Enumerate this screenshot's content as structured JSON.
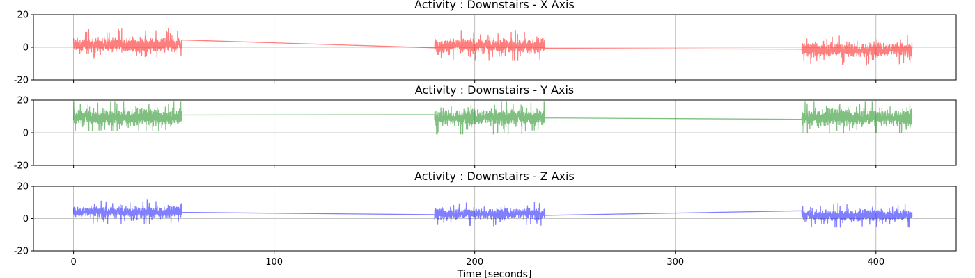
{
  "chart_data": [
    {
      "type": "line",
      "title": "Activity : Downstairs - X Axis",
      "xlim": [
        -20,
        440
      ],
      "ylim": [
        -20,
        20
      ],
      "x_ticks": [
        0,
        100,
        200,
        300,
        400
      ],
      "y_ticks": [
        -20,
        0,
        20
      ],
      "grid": true,
      "color": "#ff0000",
      "alpha": 0.5,
      "segments": [
        {
          "x_start": 0,
          "x_end": 54,
          "center": 1.5,
          "amplitude": 5,
          "peak_high": 12,
          "peak_low": -7
        },
        {
          "x_start": 180,
          "x_end": 235,
          "center": 1,
          "amplitude": 5,
          "peak_high": 12,
          "peak_low": -10
        },
        {
          "x_start": 363,
          "x_end": 418,
          "center": -1.5,
          "amplitude": 5,
          "peak_high": 10,
          "peak_low": -13
        }
      ]
    },
    {
      "type": "line",
      "title": "Activity : Downstairs - Y Axis",
      "xlim": [
        -20,
        440
      ],
      "ylim": [
        -20,
        20
      ],
      "x_ticks": [
        0,
        100,
        200,
        300,
        400
      ],
      "y_ticks": [
        -20,
        0,
        20
      ],
      "grid": true,
      "color": "#008000",
      "alpha": 0.5,
      "segments": [
        {
          "x_start": 0,
          "x_end": 54,
          "center": 9.5,
          "amplitude": 6,
          "peak_high": 19,
          "peak_low": 1
        },
        {
          "x_start": 180,
          "x_end": 235,
          "center": 9.5,
          "amplitude": 6,
          "peak_high": 19,
          "peak_low": -1
        },
        {
          "x_start": 363,
          "x_end": 418,
          "center": 9.5,
          "amplitude": 6,
          "peak_high": 19,
          "peak_low": 0
        }
      ]
    },
    {
      "type": "line",
      "title": "Activity : Downstairs - Z Axis",
      "xlabel": "Time [seconds]",
      "xlim": [
        -20,
        440
      ],
      "ylim": [
        -20,
        20
      ],
      "x_ticks": [
        0,
        100,
        200,
        300,
        400
      ],
      "y_ticks": [
        -20,
        0,
        20
      ],
      "grid": true,
      "color": "#0000ff",
      "alpha": 0.5,
      "segments": [
        {
          "x_start": 0,
          "x_end": 54,
          "center": 4,
          "amplitude": 4,
          "peak_high": 13,
          "peak_low": -5
        },
        {
          "x_start": 180,
          "x_end": 235,
          "center": 3,
          "amplitude": 4,
          "peak_high": 12,
          "peak_low": -6
        },
        {
          "x_start": 363,
          "x_end": 418,
          "center": 2,
          "amplitude": 4,
          "peak_high": 11,
          "peak_low": -8
        }
      ]
    }
  ]
}
